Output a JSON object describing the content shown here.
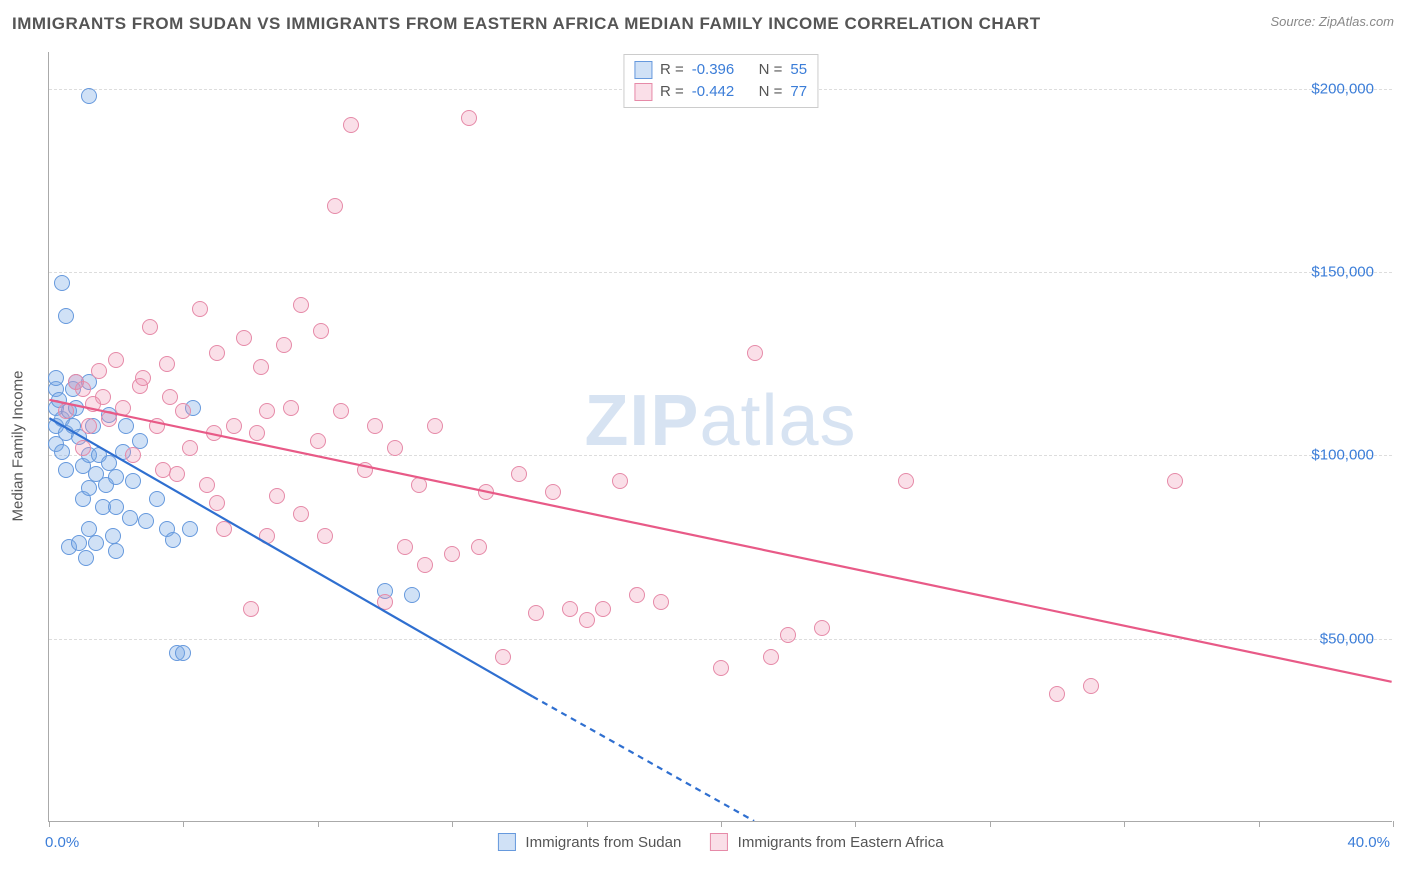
{
  "header": {
    "title": "IMMIGRANTS FROM SUDAN VS IMMIGRANTS FROM EASTERN AFRICA MEDIAN FAMILY INCOME CORRELATION CHART",
    "source_label": "Source: ZipAtlas.com",
    "watermark_bold": "ZIP",
    "watermark_rest": "atlas"
  },
  "chart": {
    "type": "scatter",
    "ylabel": "Median Family Income",
    "ylim": [
      0,
      210000
    ],
    "ytick_values": [
      50000,
      100000,
      150000,
      200000
    ],
    "ytick_labels": [
      "$50,000",
      "$100,000",
      "$150,000",
      "$200,000"
    ],
    "ytick_fontsize": 15,
    "xlim": [
      0,
      40
    ],
    "xtick_positions": [
      0,
      4,
      8,
      12,
      16,
      20,
      24,
      28,
      32,
      36,
      40
    ],
    "xtick_label_left": "0.0%",
    "xtick_label_right": "40.0%",
    "label_fontsize": 15,
    "background_color": "#ffffff",
    "grid_color": "#dddddd",
    "axis_color": "#aaaaaa",
    "value_color": "#3b7dd8",
    "text_color": "#555555",
    "marker_radius": 8,
    "marker_stroke_width": 1.5,
    "line_width": 2.2
  },
  "series": [
    {
      "key": "sudan",
      "label": "Immigrants from Sudan",
      "color_fill": "rgba(120,170,230,0.35)",
      "color_stroke": "#6699dd",
      "line_color": "#2f6fd0",
      "stats": {
        "R": "-0.396",
        "N": "55"
      },
      "regression": {
        "solid": {
          "x1": 0,
          "y1": 110000,
          "x2": 14.4,
          "y2": 34000
        },
        "dashed": {
          "x1": 14.4,
          "y1": 34000,
          "x2": 21.0,
          "y2": 0
        }
      },
      "points": [
        [
          0.2,
          113000
        ],
        [
          0.2,
          108000
        ],
        [
          0.2,
          118000
        ],
        [
          0.2,
          121000
        ],
        [
          0.2,
          103000
        ],
        [
          0.3,
          115000
        ],
        [
          0.4,
          110000
        ],
        [
          0.4,
          147000
        ],
        [
          0.4,
          101000
        ],
        [
          0.5,
          96000
        ],
        [
          0.5,
          106000
        ],
        [
          0.5,
          138000
        ],
        [
          0.6,
          112000
        ],
        [
          0.6,
          75000
        ],
        [
          0.7,
          118000
        ],
        [
          0.7,
          108000
        ],
        [
          0.8,
          113000
        ],
        [
          0.8,
          120000
        ],
        [
          0.9,
          105000
        ],
        [
          1.0,
          97000
        ],
        [
          1.0,
          88000
        ],
        [
          1.2,
          198000
        ],
        [
          1.2,
          100000
        ],
        [
          1.2,
          120000
        ],
        [
          1.2,
          80000
        ],
        [
          1.2,
          91000
        ],
        [
          1.3,
          108000
        ],
        [
          1.4,
          95000
        ],
        [
          1.4,
          76000
        ],
        [
          1.5,
          100000
        ],
        [
          1.6,
          86000
        ],
        [
          1.7,
          92000
        ],
        [
          1.8,
          111000
        ],
        [
          1.8,
          98000
        ],
        [
          1.9,
          78000
        ],
        [
          2.0,
          94000
        ],
        [
          2.0,
          86000
        ],
        [
          2.0,
          74000
        ],
        [
          2.2,
          101000
        ],
        [
          2.3,
          108000
        ],
        [
          2.4,
          83000
        ],
        [
          2.5,
          93000
        ],
        [
          2.7,
          104000
        ],
        [
          2.9,
          82000
        ],
        [
          3.2,
          88000
        ],
        [
          3.5,
          80000
        ],
        [
          3.7,
          77000
        ],
        [
          3.8,
          46000
        ],
        [
          4.0,
          46000
        ],
        [
          4.2,
          80000
        ],
        [
          4.3,
          113000
        ],
        [
          10.0,
          63000
        ],
        [
          10.8,
          62000
        ],
        [
          0.9,
          76000
        ],
        [
          1.1,
          72000
        ]
      ]
    },
    {
      "key": "eastern_africa",
      "label": "Immigrants from Eastern Africa",
      "color_fill": "rgba(240,150,180,0.30)",
      "color_stroke": "#e68aa8",
      "line_color": "#e85a87",
      "stats": {
        "R": "-0.442",
        "N": "77"
      },
      "regression": {
        "solid": {
          "x1": 0,
          "y1": 115000,
          "x2": 40,
          "y2": 38000
        }
      },
      "points": [
        [
          0.5,
          112000
        ],
        [
          0.8,
          120000
        ],
        [
          1.0,
          118000
        ],
        [
          1.2,
          108000
        ],
        [
          1.5,
          123000
        ],
        [
          1.6,
          116000
        ],
        [
          1.8,
          110000
        ],
        [
          2.0,
          126000
        ],
        [
          2.2,
          113000
        ],
        [
          2.5,
          100000
        ],
        [
          2.7,
          119000
        ],
        [
          3.0,
          135000
        ],
        [
          3.2,
          108000
        ],
        [
          3.4,
          96000
        ],
        [
          3.5,
          125000
        ],
        [
          3.8,
          95000
        ],
        [
          4.0,
          112000
        ],
        [
          4.2,
          102000
        ],
        [
          4.5,
          140000
        ],
        [
          4.7,
          92000
        ],
        [
          5.0,
          87000
        ],
        [
          5.0,
          128000
        ],
        [
          5.2,
          80000
        ],
        [
          5.5,
          108000
        ],
        [
          5.8,
          132000
        ],
        [
          6.0,
          58000
        ],
        [
          6.2,
          106000
        ],
        [
          6.5,
          78000
        ],
        [
          6.5,
          112000
        ],
        [
          6.8,
          89000
        ],
        [
          7.0,
          130000
        ],
        [
          7.2,
          113000
        ],
        [
          7.5,
          84000
        ],
        [
          7.5,
          141000
        ],
        [
          8.0,
          104000
        ],
        [
          8.2,
          78000
        ],
        [
          8.5,
          168000
        ],
        [
          8.7,
          112000
        ],
        [
          9.0,
          190000
        ],
        [
          9.4,
          96000
        ],
        [
          9.7,
          108000
        ],
        [
          10.0,
          60000
        ],
        [
          10.3,
          102000
        ],
        [
          10.6,
          75000
        ],
        [
          11.0,
          92000
        ],
        [
          11.2,
          70000
        ],
        [
          11.5,
          108000
        ],
        [
          12.0,
          73000
        ],
        [
          12.5,
          192000
        ],
        [
          12.8,
          75000
        ],
        [
          13.0,
          90000
        ],
        [
          13.5,
          45000
        ],
        [
          14.0,
          95000
        ],
        [
          14.5,
          57000
        ],
        [
          15.0,
          90000
        ],
        [
          15.5,
          58000
        ],
        [
          16.0,
          55000
        ],
        [
          16.5,
          58000
        ],
        [
          17.0,
          93000
        ],
        [
          17.5,
          62000
        ],
        [
          18.2,
          60000
        ],
        [
          20.0,
          42000
        ],
        [
          21.0,
          128000
        ],
        [
          21.5,
          45000
        ],
        [
          22.0,
          51000
        ],
        [
          23.0,
          53000
        ],
        [
          25.5,
          93000
        ],
        [
          30.0,
          35000
        ],
        [
          31.0,
          37000
        ],
        [
          33.5,
          93000
        ],
        [
          1.0,
          102000
        ],
        [
          1.3,
          114000
        ],
        [
          2.8,
          121000
        ],
        [
          3.6,
          116000
        ],
        [
          4.9,
          106000
        ],
        [
          6.3,
          124000
        ],
        [
          8.1,
          134000
        ]
      ]
    }
  ],
  "stats_legend": {
    "R_label": "R =",
    "N_label": "N ="
  },
  "bottom_legend": {
    "swatch_size": 18
  }
}
